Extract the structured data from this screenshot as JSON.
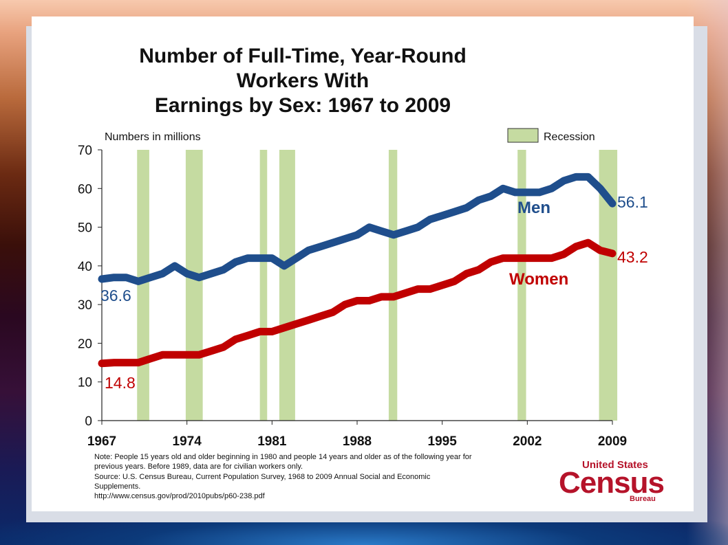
{
  "slide": {
    "title": "Number of Full-Time, Year-Round Workers With\nEarnings by Sex: 1967 to 2009",
    "note": "Note: People 15 years old and older beginning in 1980 and people 14 years and older as of the following year for\nprevious years. Before 1989, data are for civilian workers only.\nSource:  U.S. Census Bureau, Current Population Survey, 1968 to 2009 Annual Social and Economic\nSupplements.\nhttp://www.census.gov/prod/2010pubs/p60-238.pdf"
  },
  "logo": {
    "top": "United States",
    "main": "Census",
    "bottom": "Bureau",
    "color": "#b5132a"
  },
  "chart_data": {
    "type": "line",
    "title": "Number of Full-Time, Year-Round Workers With Earnings by Sex: 1967 to 2009",
    "ylabel": "Numbers in millions",
    "xlabel": "",
    "xlim": [
      1967,
      2009
    ],
    "ylim": [
      0,
      70
    ],
    "yticks": [
      0,
      10,
      20,
      30,
      40,
      50,
      60,
      70
    ],
    "xticks": [
      1967,
      1974,
      1981,
      1988,
      1995,
      2002,
      2009
    ],
    "grid": false,
    "legend": {
      "label": "Recession",
      "color": "#c5dba1",
      "placement": "top-right"
    },
    "recessions": [
      [
        1969.9,
        1970.9
      ],
      [
        1973.9,
        1975.3
      ],
      [
        1980.0,
        1980.6
      ],
      [
        1981.6,
        1982.9
      ],
      [
        1990.6,
        1991.3
      ],
      [
        2001.2,
        2001.9
      ],
      [
        2007.9,
        2009.4
      ]
    ],
    "series": [
      {
        "name": "Men",
        "color": "#1f4e8c",
        "start_label": "36.6",
        "end_label": "56.1",
        "x": [
          1967,
          1968,
          1969,
          1970,
          1971,
          1972,
          1973,
          1974,
          1975,
          1976,
          1977,
          1978,
          1979,
          1980,
          1981,
          1982,
          1983,
          1984,
          1985,
          1986,
          1987,
          1988,
          1989,
          1990,
          1991,
          1992,
          1993,
          1994,
          1995,
          1996,
          1997,
          1998,
          1999,
          2000,
          2001,
          2002,
          2003,
          2004,
          2005,
          2006,
          2007,
          2008,
          2009
        ],
        "values": [
          36.6,
          37,
          37,
          36,
          37,
          38,
          40,
          38,
          37,
          38,
          39,
          41,
          42,
          42,
          42,
          40,
          42,
          44,
          45,
          46,
          47,
          48,
          50,
          49,
          48,
          49,
          50,
          52,
          53,
          54,
          55,
          57,
          58,
          60,
          59,
          59,
          59,
          60,
          62,
          63,
          63,
          60,
          56.1
        ]
      },
      {
        "name": "Women",
        "color": "#c00000",
        "start_label": "14.8",
        "end_label": "43.2",
        "x": [
          1967,
          1968,
          1969,
          1970,
          1971,
          1972,
          1973,
          1974,
          1975,
          1976,
          1977,
          1978,
          1979,
          1980,
          1981,
          1982,
          1983,
          1984,
          1985,
          1986,
          1987,
          1988,
          1989,
          1990,
          1991,
          1992,
          1993,
          1994,
          1995,
          1996,
          1997,
          1998,
          1999,
          2000,
          2001,
          2002,
          2003,
          2004,
          2005,
          2006,
          2007,
          2008,
          2009
        ],
        "values": [
          14.8,
          15,
          15,
          15,
          16,
          17,
          17,
          17,
          17,
          18,
          19,
          21,
          22,
          23,
          23,
          24,
          25,
          26,
          27,
          28,
          30,
          31,
          31,
          32,
          32,
          33,
          34,
          34,
          35,
          36,
          38,
          39,
          41,
          42,
          42,
          42,
          42,
          42,
          43,
          45,
          46,
          44,
          43.2
        ]
      }
    ]
  }
}
